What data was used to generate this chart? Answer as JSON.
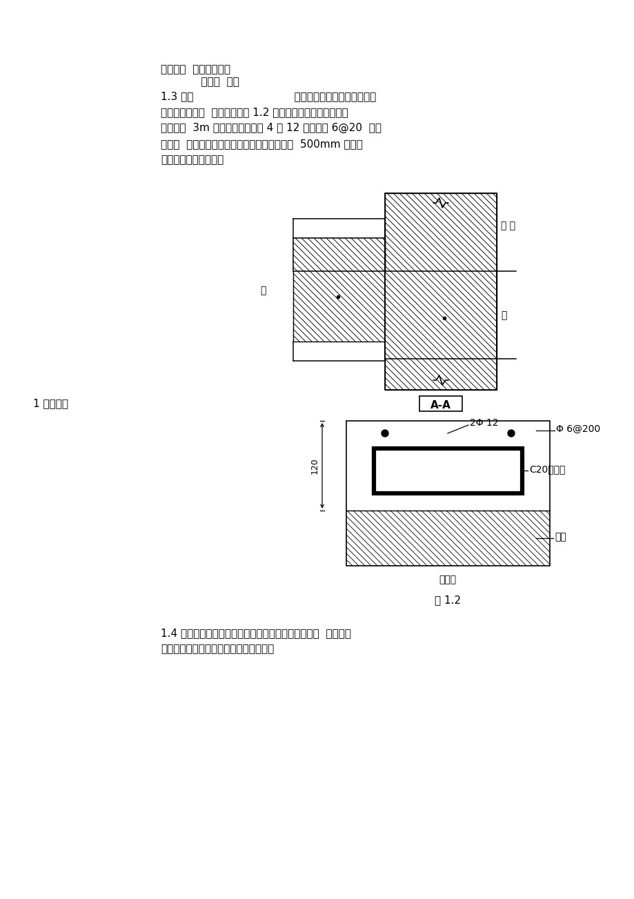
{
  "bg_color": "#ffffff",
  "text_color": "#000000",
  "header_line1": "技术措施  条通病部位或",
  "header_line2": "            号现象  项目",
  "para1_line1": "1.3 当外                              墙设置通长窗时，窗下应设钢",
  "para1_line2": "筋混凝土压顶，  压顶配筋见图 1.2 ；压顶下应设置抗裂柱，间",
  "para1_line3": "距不大于  3m 抗裂柱内配不小于 4 巾 12 纵筋及巾 6@20  （箍",
  "para1_line4": "筋；压  顶和抗裂柱纵筋搭接、锚固长度不小于  500mm 拉结筋",
  "para1_line5": "设置应符合抗震要求。",
  "label_seepage": "1 渗漏外墙",
  "label_AA": "A-A",
  "label_phi6": "Φ 6@200",
  "label_2phi12": "2Φ 12",
  "label_c20": "C20混凝土",
  "label_wall": "墙体",
  "label_width": "压顶宽",
  "label_brick": "砖 墙",
  "label_column": "柱",
  "label_window": "窗",
  "label_dim": "120",
  "caption": "图 1.2",
  "para4_line1": "1.4 混凝土结构在找平层施工前应凿毛或甩浆，混凝土  结构及砌",
  "para4_line2": "体结构在找平层施工前应充分淋水湿润。"
}
